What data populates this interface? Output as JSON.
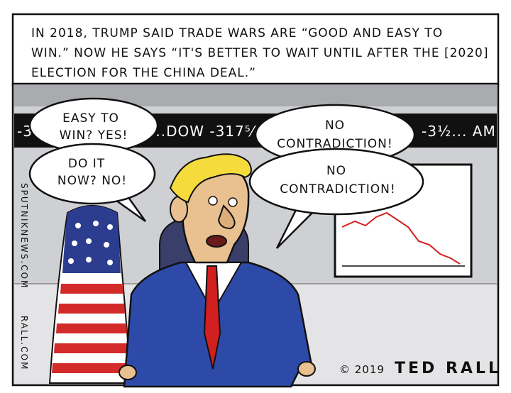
{
  "caption": {
    "lines": [
      "IN 2018, TRUMP SAID TRADE WARS ARE “GOOD AND EASY TO",
      "WIN.” NOW HE SAYS “IT'S BETTER TO WAIT UNTIL AFTER THE [2020]",
      "ELECTION FOR THE CHINA DEAL.”"
    ]
  },
  "ticker": {
    "left": "-3",
    "middle": "...DOW -317⁵⁄₈...",
    "right": "-3½... AM"
  },
  "bubbles": [
    {
      "lines": [
        "EASY TO",
        "WIN? YES!"
      ]
    },
    {
      "lines": [
        "DO IT",
        "NOW? NO!"
      ]
    },
    {
      "lines": [
        "NO",
        "CONTRADICTION!"
      ]
    },
    {
      "lines": [
        "NO",
        "CONTRADICTION!"
      ]
    }
  ],
  "credits": {
    "website1": "SPUTNIKNEWS.COM",
    "website2": "RALL.COM",
    "copyright": "© 2019",
    "signature": "TED RALL"
  }
}
